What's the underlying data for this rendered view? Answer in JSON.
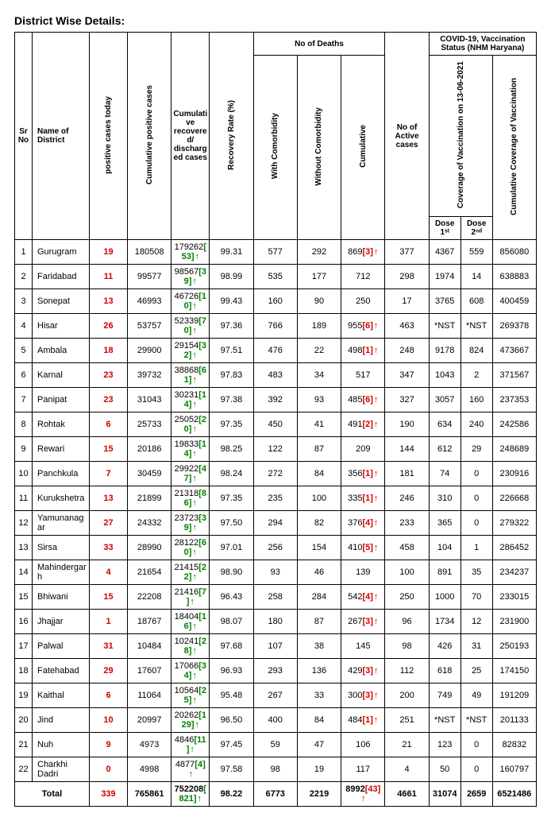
{
  "title": "District Wise Details:",
  "headers": {
    "sr": "Sr No",
    "name": "Name of District",
    "pct": "positive cases today",
    "cpc": "Cumulative positive cases",
    "crd": "Cumulative recovered/ discharged cases",
    "rr": "Recovery Rate (%)",
    "deaths_group": "No of Deaths",
    "wc": "With Comorbidity",
    "woc": "Without Comorbidity",
    "cum": "Cumulative",
    "active": "No of Active cases",
    "vac_group": "COVID-19, Vaccination Status (NHM Haryana)",
    "cov_group": "Coverage of Vaccination on 13-06-2021",
    "dose1": "Dose 1ˢᵗ",
    "dose2": "Dose 2ⁿᵈ",
    "cumvac": "Cumulative Coverage of Vaccination"
  },
  "rows": [
    {
      "n": 1,
      "name": "Gurugram",
      "pct": "19",
      "cpc": "180508",
      "rdc": "179262",
      "rdc_d": "53",
      "rr": "99.31",
      "wc": "577",
      "woc": "292",
      "cum": "869",
      "cum_d": "3",
      "act": "377",
      "d1": "4367",
      "d2": "559",
      "cv": "856080"
    },
    {
      "n": 2,
      "name": "Faridabad",
      "pct": "11",
      "cpc": "99577",
      "rdc": "98567",
      "rdc_d": "39",
      "rr": "98.99",
      "wc": "535",
      "woc": "177",
      "cum": "712",
      "cum_d": "",
      "act": "298",
      "d1": "1974",
      "d2": "14",
      "cv": "638883"
    },
    {
      "n": 3,
      "name": "Sonepat",
      "pct": "13",
      "cpc": "46993",
      "rdc": "46726",
      "rdc_d": "10",
      "rr": "99.43",
      "wc": "160",
      "woc": "90",
      "cum": "250",
      "cum_d": "",
      "act": "17",
      "d1": "3765",
      "d2": "608",
      "cv": "400459"
    },
    {
      "n": 4,
      "name": "Hisar",
      "pct": "26",
      "cpc": "53757",
      "rdc": "52339",
      "rdc_d": "70",
      "rr": "97.36",
      "wc": "766",
      "woc": "189",
      "cum": "955",
      "cum_d": "6",
      "act": "463",
      "d1": "*NST",
      "d2": "*NST",
      "cv": "269378"
    },
    {
      "n": 5,
      "name": "Ambala",
      "pct": "18",
      "cpc": "29900",
      "rdc": "29154",
      "rdc_d": "32",
      "rr": "97.51",
      "wc": "476",
      "woc": "22",
      "cum": "498",
      "cum_d": "1",
      "act": "248",
      "d1": "9178",
      "d2": "824",
      "cv": "473667"
    },
    {
      "n": 6,
      "name": "Karnal",
      "pct": "23",
      "cpc": "39732",
      "rdc": "38868",
      "rdc_d": "61",
      "rr": "97.83",
      "wc": "483",
      "woc": "34",
      "cum": "517",
      "cum_d": "",
      "act": "347",
      "d1": "1043",
      "d2": "2",
      "cv": "371567"
    },
    {
      "n": 7,
      "name": "Panipat",
      "pct": "23",
      "cpc": "31043",
      "rdc": "30231",
      "rdc_d": "14",
      "rr": "97.38",
      "wc": "392",
      "woc": "93",
      "cum": "485",
      "cum_d": "6",
      "act": "327",
      "d1": "3057",
      "d2": "160",
      "cv": "237353"
    },
    {
      "n": 8,
      "name": "Rohtak",
      "pct": "6",
      "cpc": "25733",
      "rdc": "25052",
      "rdc_d": "20",
      "rr": "97.35",
      "wc": "450",
      "woc": "41",
      "cum": "491",
      "cum_d": "2",
      "act": "190",
      "d1": "634",
      "d2": "240",
      "cv": "242586"
    },
    {
      "n": 9,
      "name": "Rewari",
      "pct": "15",
      "cpc": "20186",
      "rdc": "19833",
      "rdc_d": "14",
      "rr": "98.25",
      "wc": "122",
      "woc": "87",
      "cum": "209",
      "cum_d": "",
      "act": "144",
      "d1": "612",
      "d2": "29",
      "cv": "248689"
    },
    {
      "n": 10,
      "name": "Panchkula",
      "pct": "7",
      "cpc": "30459",
      "rdc": "29922",
      "rdc_d": "47",
      "rr": "98.24",
      "wc": "272",
      "woc": "84",
      "cum": "356",
      "cum_d": "1",
      "act": "181",
      "d1": "74",
      "d2": "0",
      "cv": "230916"
    },
    {
      "n": 11,
      "name": "Kurukshetra",
      "pct": "13",
      "cpc": "21899",
      "rdc": "21318",
      "rdc_d": "86",
      "rr": "97.35",
      "wc": "235",
      "woc": "100",
      "cum": "335",
      "cum_d": "1",
      "act": "246",
      "d1": "310",
      "d2": "0",
      "cv": "226668"
    },
    {
      "n": 12,
      "name": "Yamunanagar",
      "pct": "27",
      "cpc": "24332",
      "rdc": "23723",
      "rdc_d": "39",
      "rr": "97.50",
      "wc": "294",
      "woc": "82",
      "cum": "376",
      "cum_d": "4",
      "act": "233",
      "d1": "365",
      "d2": "0",
      "cv": "279322"
    },
    {
      "n": 13,
      "name": "Sirsa",
      "pct": "33",
      "cpc": "28990",
      "rdc": "28122",
      "rdc_d": "60",
      "rr": "97.01",
      "wc": "256",
      "woc": "154",
      "cum": "410",
      "cum_d": "5",
      "act": "458",
      "d1": "104",
      "d2": "1",
      "cv": "286452"
    },
    {
      "n": 14,
      "name": "Mahindergarh",
      "pct": "4",
      "cpc": "21654",
      "rdc": "21415",
      "rdc_d": "22",
      "rr": "98.90",
      "wc": "93",
      "woc": "46",
      "cum": "139",
      "cum_d": "",
      "act": "100",
      "d1": "891",
      "d2": "35",
      "cv": "234237"
    },
    {
      "n": 15,
      "name": "Bhiwani",
      "pct": "15",
      "cpc": "22208",
      "rdc": "21416",
      "rdc_d": "7",
      "rr": "96.43",
      "wc": "258",
      "woc": "284",
      "cum": "542",
      "cum_d": "4",
      "act": "250",
      "d1": "1000",
      "d2": "70",
      "cv": "233015"
    },
    {
      "n": 16,
      "name": "Jhajjar",
      "pct": "1",
      "cpc": "18767",
      "rdc": "18404",
      "rdc_d": "16",
      "rr": "98.07",
      "wc": "180",
      "woc": "87",
      "cum": "267",
      "cum_d": "3",
      "act": "96",
      "d1": "1734",
      "d2": "12",
      "cv": "231900"
    },
    {
      "n": 17,
      "name": "Palwal",
      "pct": "31",
      "cpc": "10484",
      "rdc": "10241",
      "rdc_d": "28",
      "rr": "97.68",
      "wc": "107",
      "woc": "38",
      "cum": "145",
      "cum_d": "",
      "act": "98",
      "d1": "426",
      "d2": "31",
      "cv": "250193"
    },
    {
      "n": 18,
      "name": "Fatehabad",
      "pct": "29",
      "cpc": "17607",
      "rdc": "17066",
      "rdc_d": "34",
      "rr": "96.93",
      "wc": "293",
      "woc": "136",
      "cum": "429",
      "cum_d": "3",
      "act": "112",
      "d1": "618",
      "d2": "25",
      "cv": "174150"
    },
    {
      "n": 19,
      "name": "Kaithal",
      "pct": "6",
      "cpc": "11064",
      "rdc": "10564",
      "rdc_d": "25",
      "rr": "95.48",
      "wc": "267",
      "woc": "33",
      "cum": "300",
      "cum_d": "3",
      "act": "200",
      "d1": "749",
      "d2": "49",
      "cv": "191209"
    },
    {
      "n": 20,
      "name": "Jind",
      "pct": "10",
      "cpc": "20997",
      "rdc": "20262",
      "rdc_d": "129",
      "rr": "96.50",
      "wc": "400",
      "woc": "84",
      "cum": "484",
      "cum_d": "1",
      "act": "251",
      "d1": "*NST",
      "d2": "*NST",
      "cv": "201133"
    },
    {
      "n": 21,
      "name": "Nuh",
      "pct": "9",
      "cpc": "4973",
      "rdc": "4846",
      "rdc_d": "11",
      "rr": "97.45",
      "wc": "59",
      "woc": "47",
      "cum": "106",
      "cum_d": "",
      "act": "21",
      "d1": "123",
      "d2": "0",
      "cv": "82832"
    },
    {
      "n": 22,
      "name": "Charkhi Dadri",
      "pct": "0",
      "cpc": "4998",
      "rdc": "4877",
      "rdc_d": "4",
      "rr": "97.58",
      "wc": "98",
      "woc": "19",
      "cum": "117",
      "cum_d": "",
      "act": "4",
      "d1": "50",
      "d2": "0",
      "cv": "160797"
    }
  ],
  "total": {
    "label": "Total",
    "pct": "339",
    "cpc": "765861",
    "rdc": "752208",
    "rdc_d": "821",
    "rr": "98.22",
    "wc": "6773",
    "woc": "2219",
    "cum": "8992",
    "cum_d": "43",
    "act": "4661",
    "d1": "31074",
    "d2": "2659",
    "cv": "6521486"
  }
}
